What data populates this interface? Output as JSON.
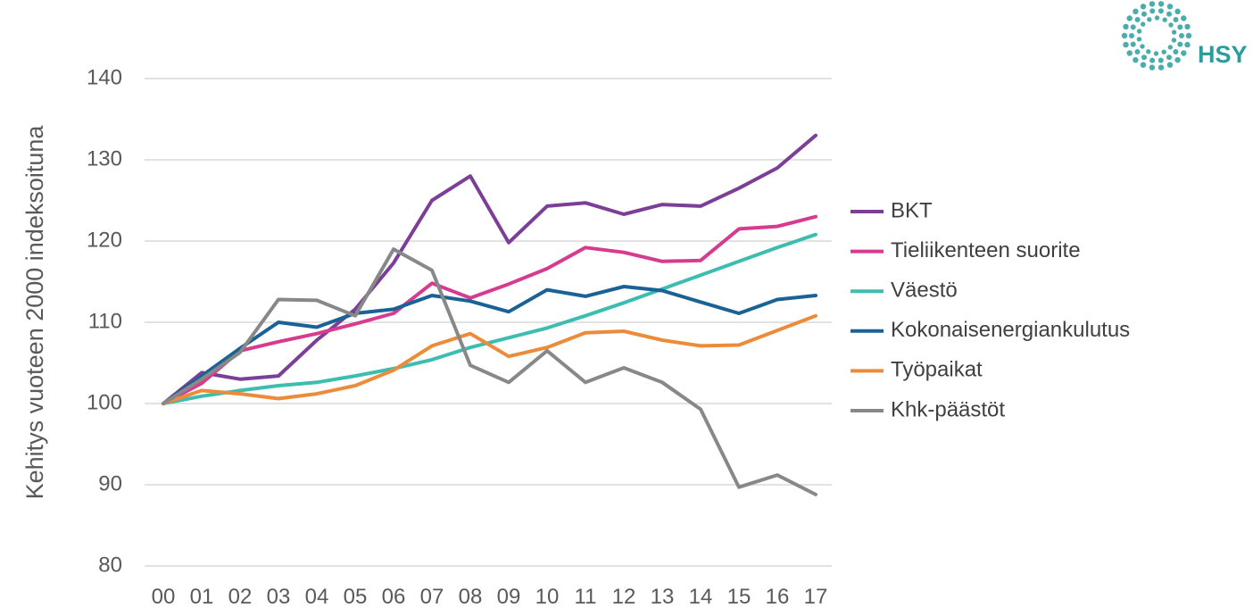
{
  "chart_data": {
    "type": "line",
    "title": "",
    "xlabel": "",
    "ylabel": "Kehitys vuoteen 2000 indeksoituna",
    "ylim": [
      80,
      140
    ],
    "yticks": [
      80,
      90,
      100,
      110,
      120,
      130,
      140
    ],
    "categories": [
      "00",
      "01",
      "02",
      "03",
      "04",
      "05",
      "06",
      "07",
      "08",
      "09",
      "10",
      "11",
      "12",
      "13",
      "14",
      "15",
      "16",
      "17"
    ],
    "grid": true,
    "legend_position": "right",
    "series": [
      {
        "name": "BKT",
        "color": "#7b3f97",
        "values": [
          100,
          103.8,
          103.0,
          103.4,
          107.8,
          111.6,
          117.3,
          125.0,
          128.0,
          119.8,
          124.3,
          124.7,
          123.3,
          124.5,
          124.3,
          126.5,
          129.0,
          133.0
        ]
      },
      {
        "name": "Tieliikenteen suorite",
        "color": "#d63b8f",
        "values": [
          100,
          102.5,
          106.5,
          107.6,
          108.6,
          109.8,
          111.1,
          114.8,
          113.0,
          114.7,
          116.6,
          119.2,
          118.6,
          117.5,
          117.6,
          121.5,
          121.8,
          123.0
        ]
      },
      {
        "name": "Väestö",
        "color": "#3dbcb0",
        "values": [
          100,
          100.9,
          101.6,
          102.2,
          102.6,
          103.4,
          104.3,
          105.4,
          106.9,
          108.1,
          109.3,
          110.8,
          112.4,
          114.1,
          115.8,
          117.5,
          119.2,
          120.8
        ]
      },
      {
        "name": "Kokonaisenergiankulutus",
        "color": "#1a6296",
        "values": [
          100,
          103.4,
          106.8,
          110.0,
          109.4,
          111.1,
          111.6,
          113.3,
          112.6,
          111.3,
          114.0,
          113.2,
          114.4,
          113.9,
          112.5,
          111.1,
          112.8,
          113.3
        ]
      },
      {
        "name": "Työpaikat",
        "color": "#ec8c3a",
        "values": [
          100,
          101.6,
          101.2,
          100.6,
          101.2,
          102.2,
          104.1,
          107.1,
          108.6,
          105.8,
          106.9,
          108.7,
          108.9,
          107.8,
          107.1,
          107.2,
          109.0,
          110.8
        ]
      },
      {
        "name": "Khk-päästöt",
        "color": "#888888",
        "values": [
          100,
          103.0,
          106.3,
          112.8,
          112.7,
          110.8,
          119.0,
          116.4,
          104.7,
          102.6,
          106.5,
          102.6,
          104.4,
          102.6,
          99.3,
          89.7,
          91.2,
          88.8
        ]
      }
    ]
  },
  "logo": {
    "text": "HSY",
    "color": "#2a9d9c"
  }
}
